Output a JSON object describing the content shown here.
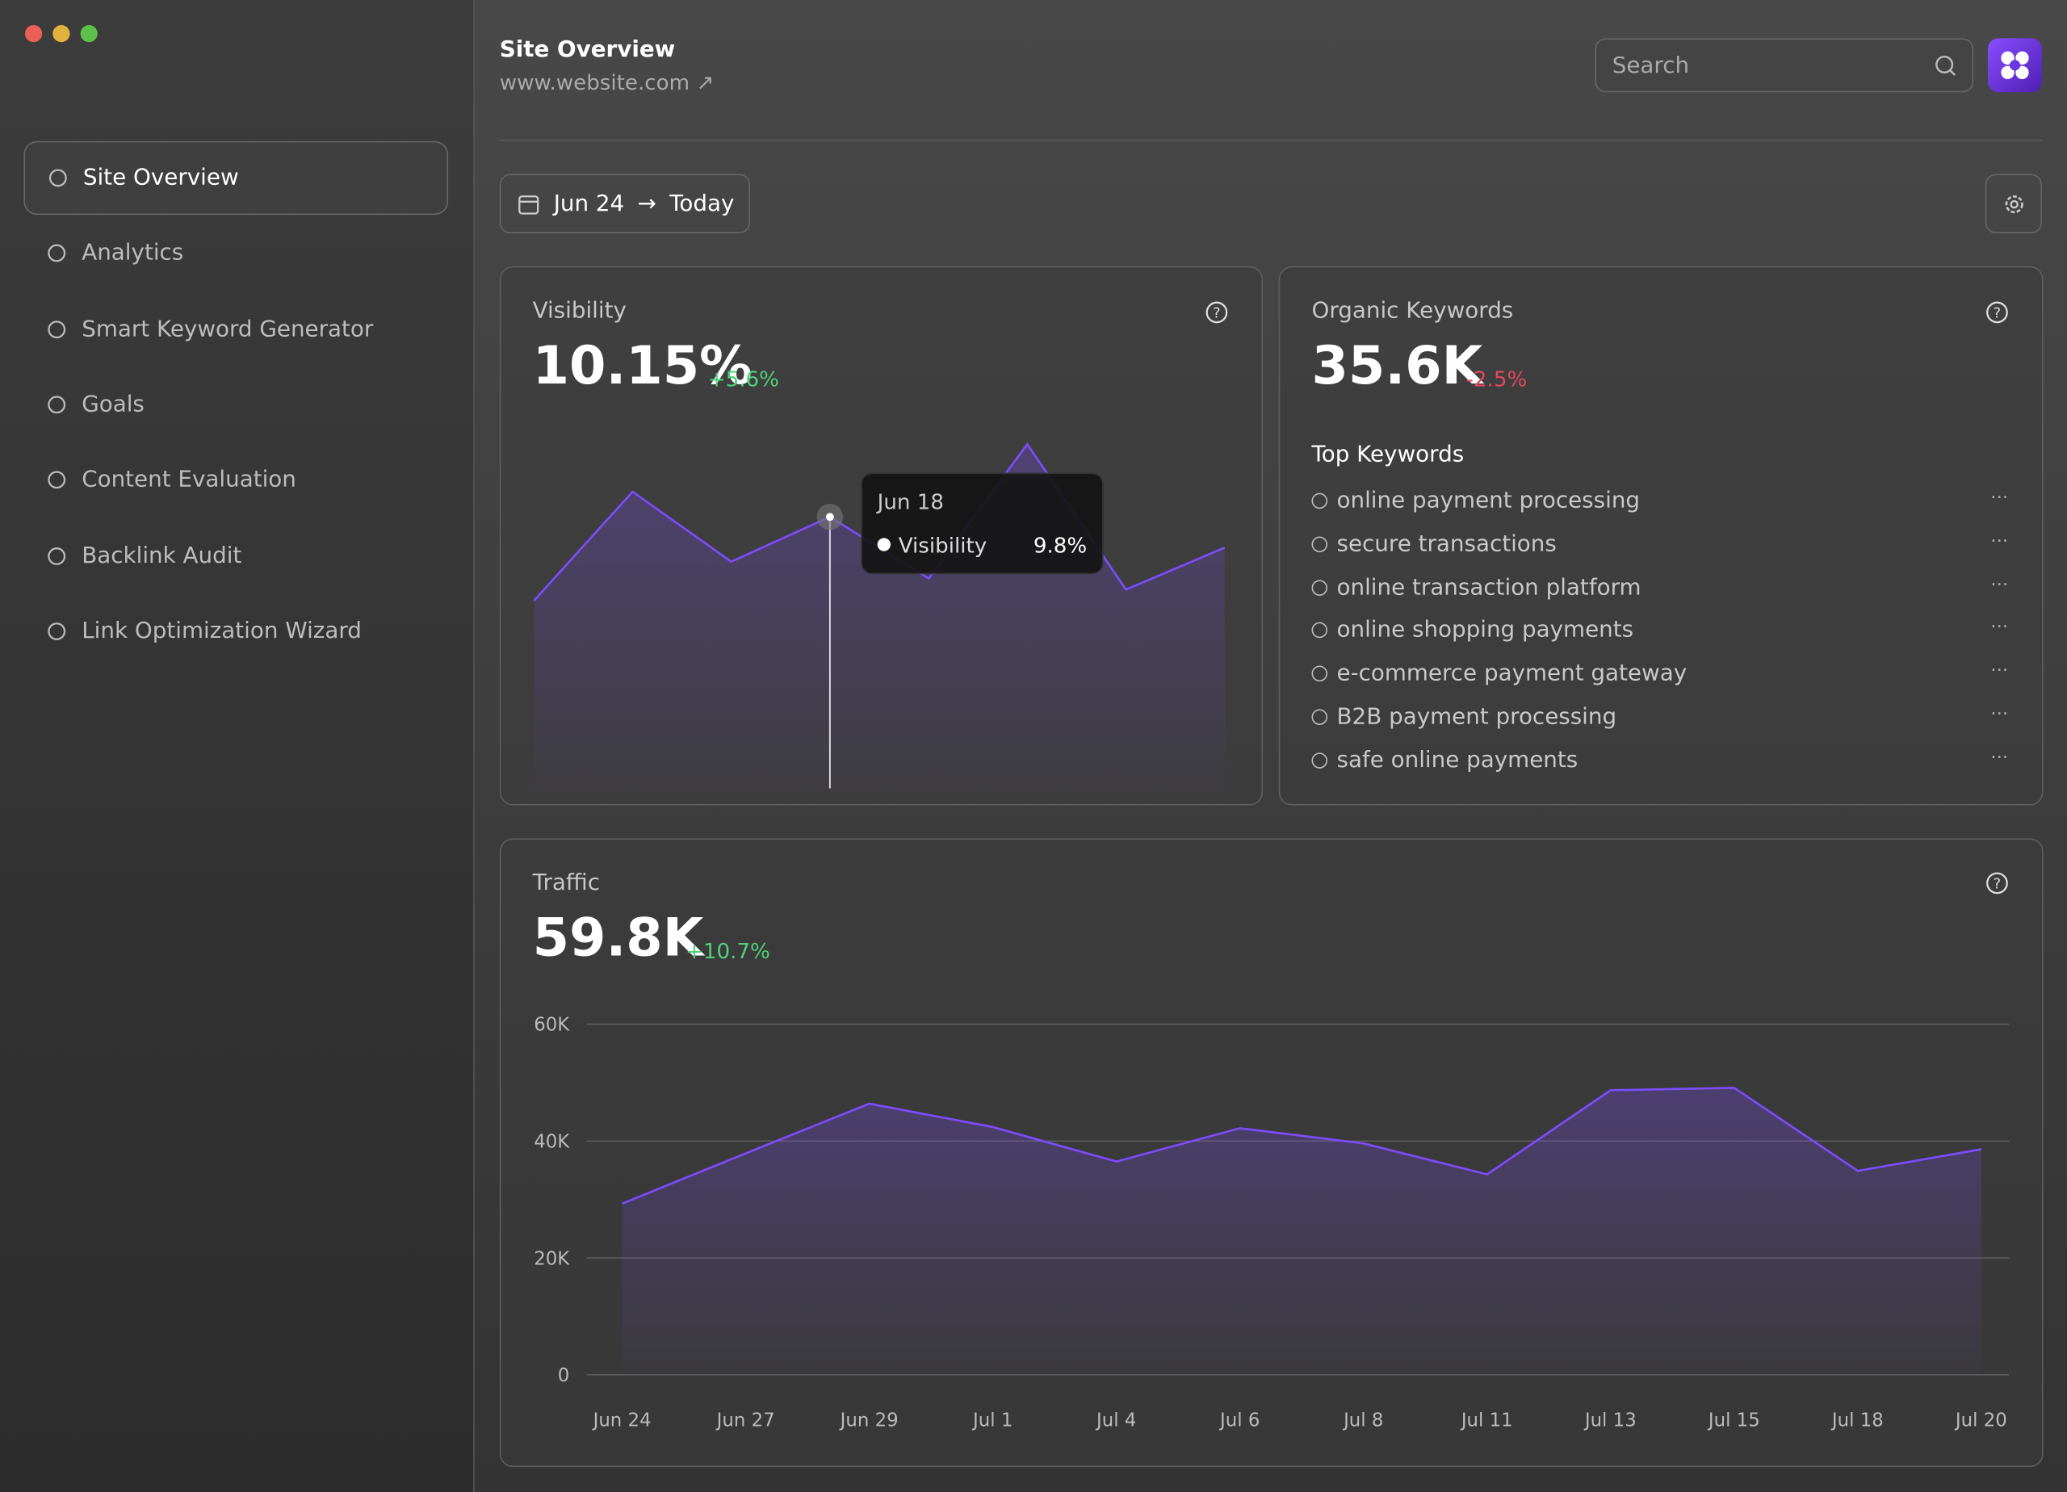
{
  "window": {
    "title": "Site Overview",
    "url": "www.website.com",
    "search_placeholder": "Search"
  },
  "sidebar": {
    "items": [
      "Site Overview",
      "Analytics",
      "Smart Keyword Generator",
      "Goals",
      "Content Evaluation",
      "Backlink Audit",
      "Link Optimization Wizard"
    ],
    "active": 0
  },
  "date_range": {
    "start": "Jun 24",
    "end": "Today"
  },
  "visibility": {
    "title": "Visibility",
    "value": "10.15%",
    "change": "+5.6%",
    "chart": {
      "type": "area",
      "categories": [
        null,
        null,
        null,
        "Jun 18",
        null,
        null,
        null,
        null
      ],
      "series": [
        {
          "name": "Visibility",
          "color": "#7c4dff",
          "values": [
            6.8,
            10.7,
            8.2,
            9.8,
            7.6,
            12.4,
            7.2,
            8.7
          ],
          "value_labels": [
            null,
            null,
            null,
            "9.8%",
            null,
            null,
            null,
            null
          ]
        }
      ]
    }
  },
  "organic_keywords": {
    "title": "Organic Keywords",
    "value": "35.6K",
    "change": "-2.5%",
    "top_keywords_title": "Top Keywords",
    "keywords": [
      "online payment processing",
      "secure transactions",
      "online transaction platform",
      "online shopping payments",
      "e-commerce payment gateway",
      "B2B payment processing",
      "safe online payments"
    ]
  },
  "traffic": {
    "title": "Traffic",
    "value": "59.8K",
    "change": "+10.7%",
    "chart": {
      "type": "area",
      "categories": [
        "Jun 24",
        "Jun 27",
        "Jun 29",
        "Jul 1",
        "Jul 4",
        "Jul 6",
        "Jul 8",
        "Jul 11",
        "Jul 13",
        "Jul 15",
        "Jul 18",
        "Jul 20"
      ],
      "series": [
        {
          "name": "Traffic",
          "color": "#7c4dff",
          "values": [
            29300,
            37900,
            46400,
            42400,
            36500,
            42200,
            39600,
            34300,
            48700,
            49100,
            34900,
            38600
          ]
        }
      ],
      "ylim": [
        0,
        60000
      ],
      "yticks": [
        0,
        {
          "value": 20000,
          "label": "20K"
        },
        {
          "value": 40000,
          "label": "40K"
        },
        {
          "value": 60000,
          "label": "60K"
        }
      ],
      "grid": true
    }
  }
}
